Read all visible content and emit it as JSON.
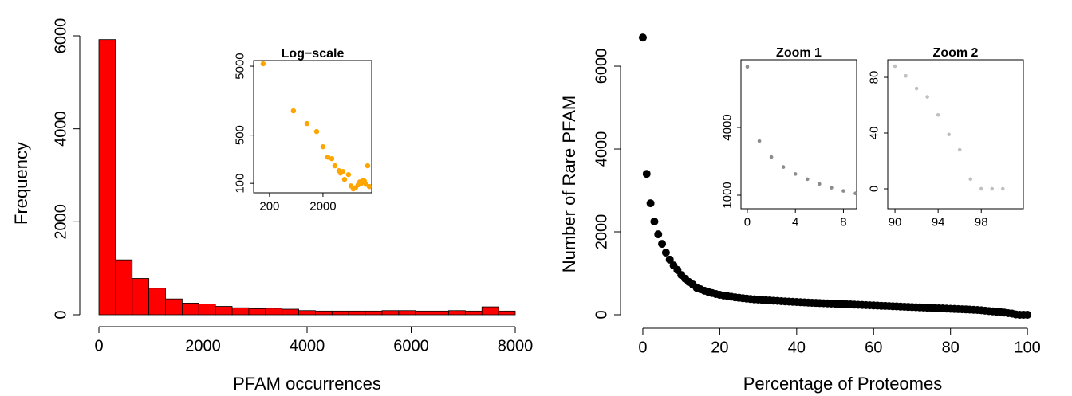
{
  "chart_data": [
    {
      "type": "histogram",
      "xlabel": "PFAM occurrences",
      "ylabel": "Frequency",
      "color": "#ff0000",
      "bins": [
        0,
        320,
        640,
        960,
        1280,
        1600,
        1920,
        2240,
        2560,
        2880,
        3200,
        3520,
        3840,
        4160,
        4480,
        4800,
        5120,
        5440,
        5760,
        6080,
        6400,
        6720,
        7040,
        7360,
        7680,
        8000
      ],
      "values": [
        5920,
        1180,
        780,
        570,
        340,
        250,
        230,
        180,
        150,
        130,
        140,
        120,
        90,
        80,
        80,
        80,
        80,
        90,
        90,
        80,
        80,
        90,
        80,
        170,
        80
      ],
      "xlim": [
        0,
        8000
      ],
      "ylim": [
        0,
        6000
      ],
      "xticks": [
        0,
        2000,
        4000,
        6000,
        8000
      ],
      "yticks": [
        0,
        2000,
        4000,
        6000
      ]
    },
    {
      "type": "scatter",
      "title": "Log−scale",
      "color": "#ffa500",
      "xlog": true,
      "ylog": true,
      "x": [
        152,
        560,
        1006,
        1520,
        2000,
        2460,
        2920,
        3350,
        3980,
        4260,
        4720,
        5060,
        6000,
        6660,
        7380,
        8180,
        9080,
        9730,
        10400,
        11100,
        11900,
        12800,
        13700,
        14700
      ],
      "values": [
        5415,
        1127,
        736,
        564,
        340,
        240,
        228,
        180,
        153,
        141,
        149,
        114,
        134,
        92,
        83,
        87,
        95,
        105,
        100,
        111,
        108,
        97,
        180,
        90
      ],
      "xlim": [
        101,
        16300
      ],
      "ylim": [
        73,
        6030
      ],
      "xticks": [
        200,
        2000
      ],
      "yticks": [
        100,
        500,
        5000
      ]
    },
    {
      "type": "scatter",
      "xlabel": "Percentage of Proteomes",
      "ylabel": "Number of Rare PFAM",
      "color": "#000000",
      "x": [
        0,
        1,
        2,
        3,
        4,
        5,
        6,
        7,
        8,
        9,
        10,
        11,
        12,
        13,
        14,
        15,
        16,
        17,
        18,
        19,
        20,
        21,
        22,
        23,
        24,
        25,
        26,
        27,
        28,
        29,
        30,
        31,
        32,
        33,
        34,
        35,
        36,
        37,
        38,
        39,
        40,
        41,
        42,
        43,
        44,
        45,
        46,
        47,
        48,
        49,
        50,
        51,
        52,
        53,
        54,
        55,
        56,
        57,
        58,
        59,
        60,
        61,
        62,
        63,
        64,
        65,
        66,
        67,
        68,
        69,
        70,
        71,
        72,
        73,
        74,
        75,
        76,
        77,
        78,
        79,
        80,
        81,
        82,
        83,
        84,
        85,
        86,
        87,
        88,
        89,
        90,
        91,
        92,
        93,
        94,
        95,
        96,
        97,
        98,
        99,
        100
      ],
      "values": [
        6690,
        3400,
        2690,
        2250,
        1940,
        1710,
        1500,
        1330,
        1190,
        1080,
        960,
        870,
        790,
        730,
        650,
        615,
        580,
        550,
        525,
        500,
        480,
        465,
        450,
        435,
        420,
        410,
        400,
        390,
        380,
        372,
        365,
        358,
        352,
        346,
        340,
        334,
        328,
        322,
        317,
        312,
        307,
        302,
        297,
        293,
        289,
        285,
        281,
        277,
        273,
        269,
        265,
        261,
        257,
        253,
        249,
        245,
        241,
        237,
        233,
        229,
        225,
        221,
        217,
        213,
        209,
        205,
        201,
        197,
        193,
        189,
        185,
        181,
        177,
        173,
        169,
        165,
        161,
        157,
        153,
        149,
        145,
        141,
        137,
        133,
        129,
        125,
        120,
        115,
        108,
        98,
        88,
        81,
        72,
        66,
        53,
        39,
        28,
        7,
        0,
        0,
        0
      ],
      "xlim": [
        -5.8,
        103.5
      ],
      "ylim": [
        -327,
        7020
      ],
      "xticks": [
        0,
        20,
        40,
        60,
        80,
        100
      ],
      "yticks": [
        0,
        2000,
        4000,
        6000
      ]
    },
    {
      "type": "scatter",
      "title": "Zoom 1",
      "color": "#8c8c8c",
      "x": [
        0,
        1,
        2,
        3,
        4,
        5,
        6,
        7,
        8,
        9
      ],
      "values": [
        6690,
        3400,
        2690,
        2250,
        1940,
        1710,
        1500,
        1330,
        1190,
        1080
      ],
      "xlim": [
        -0.53,
        9.1
      ],
      "ylim": [
        400,
        7000
      ],
      "xticks": [
        0,
        4,
        8
      ],
      "yticks": [
        1000,
        4000
      ]
    },
    {
      "type": "scatter",
      "title": "Zoom 2",
      "color": "#c0c0c0",
      "x": [
        90,
        91,
        92,
        93,
        94,
        95,
        96,
        97,
        98,
        99,
        100
      ],
      "values": [
        88,
        81,
        72,
        66,
        53,
        39,
        28,
        7,
        0,
        0,
        0
      ],
      "xlim": [
        89.33,
        101.9
      ],
      "ylim": [
        -14.3,
        92.6
      ],
      "xticks": [
        90,
        94,
        98
      ],
      "yticks": [
        0,
        40,
        80
      ]
    }
  ]
}
